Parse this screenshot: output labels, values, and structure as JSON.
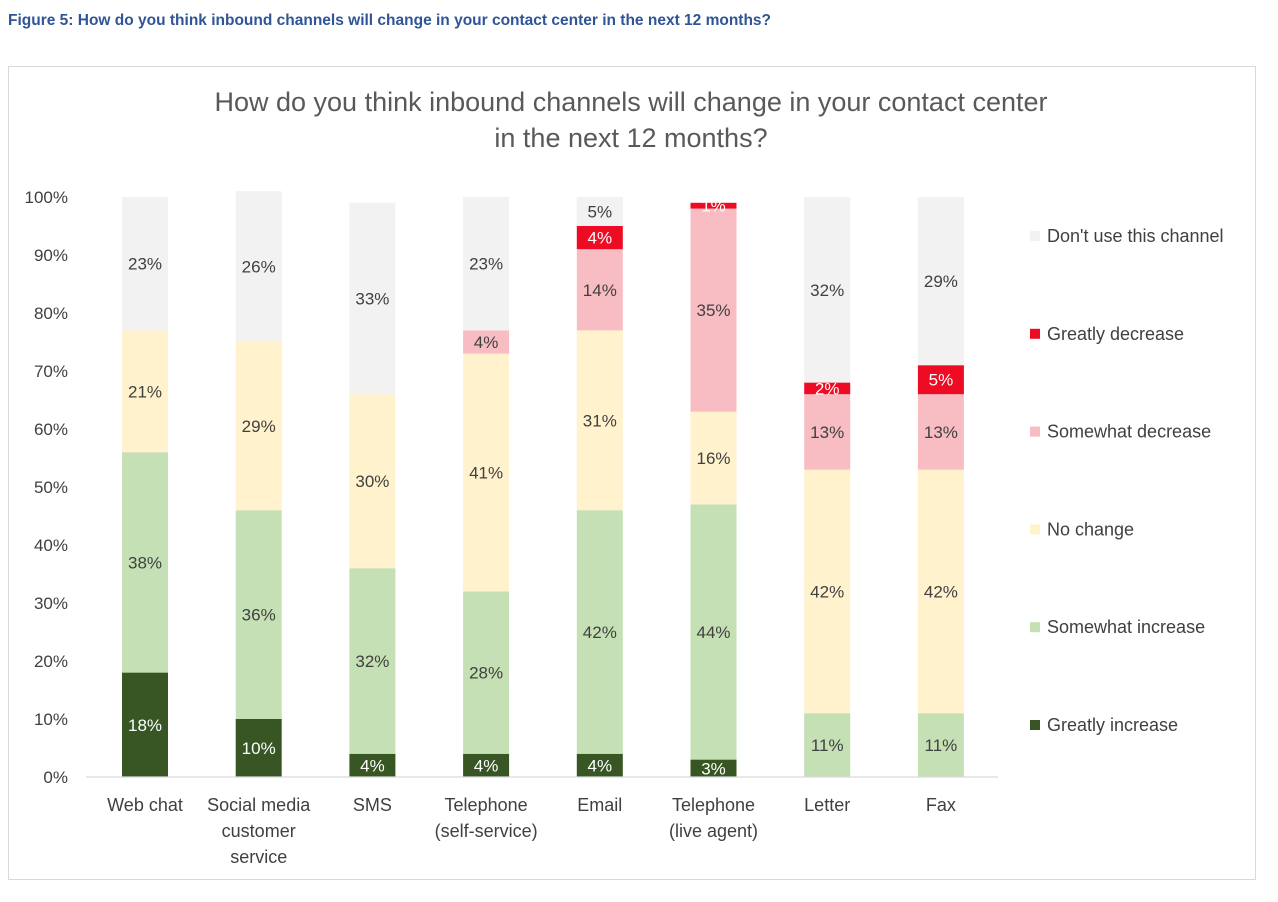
{
  "figure_caption": "Figure 5: How do you think inbound channels will change in your contact center in the next 12 months?",
  "chart_data": {
    "type": "bar",
    "stacked": true,
    "title": "How do you think inbound channels will change in your contact center in the next 12 months?",
    "title_lines": [
      "How do you think inbound channels will change in your contact center",
      "in the next 12 months?"
    ],
    "categories": [
      [
        "Web chat"
      ],
      [
        "Social media",
        "customer",
        "service"
      ],
      [
        "SMS"
      ],
      [
        "Telephone",
        "(self-service)"
      ],
      [
        "Email"
      ],
      [
        "Telephone",
        "(live agent)"
      ],
      [
        "Letter"
      ],
      [
        "Fax"
      ]
    ],
    "ylim": [
      0,
      100
    ],
    "yticks": [
      "0%",
      "10%",
      "20%",
      "30%",
      "40%",
      "50%",
      "60%",
      "70%",
      "80%",
      "90%",
      "100%"
    ],
    "grid": false,
    "legend_position": "right",
    "series": [
      {
        "name": "Greatly increase",
        "color": "#375623",
        "label_color": "#ffffff",
        "values": [
          18,
          10,
          4,
          4,
          4,
          3,
          0,
          0
        ],
        "labels": [
          "18%",
          "10%",
          "4%",
          "4%",
          "4%",
          "3%",
          "",
          ""
        ]
      },
      {
        "name": "Somewhat increase",
        "color": "#c5e0b4",
        "label_color": "#404040",
        "values": [
          38,
          36,
          32,
          28,
          42,
          44,
          11,
          11
        ],
        "labels": [
          "38%",
          "36%",
          "32%",
          "28%",
          "42%",
          "44%",
          "11%",
          "11%"
        ]
      },
      {
        "name": "No change",
        "color": "#fff2cc",
        "label_color": "#404040",
        "values": [
          21,
          29,
          30,
          41,
          31,
          16,
          42,
          42
        ],
        "labels": [
          "21%",
          "29%",
          "30%",
          "41%",
          "31%",
          "16%",
          "42%",
          "42%"
        ]
      },
      {
        "name": "Somewhat decrease",
        "color": "#f8bcc3",
        "label_color": "#404040",
        "values": [
          0,
          0,
          0,
          4,
          14,
          35,
          13,
          13
        ],
        "labels": [
          "",
          "",
          "",
          "4%",
          "14%",
          "35%",
          "13%",
          "13%"
        ]
      },
      {
        "name": "Greatly decrease",
        "color": "#ee0c24",
        "label_color": "#ffffff",
        "values": [
          0,
          0,
          0,
          0,
          4,
          1,
          2,
          5
        ],
        "labels": [
          "",
          "",
          "",
          "",
          "4%",
          "1%",
          "2%",
          "5%"
        ]
      },
      {
        "name": "Don't use this channel",
        "color": "#f2f2f2",
        "label_color": "#404040",
        "values": [
          23,
          26,
          33,
          23,
          5,
          0,
          32,
          29
        ],
        "labels": [
          "23%",
          "26%",
          "33%",
          "23%",
          "5%",
          "",
          "32%",
          "29%"
        ]
      }
    ],
    "legend_order": [
      "Don't use this channel",
      "Greatly decrease",
      "Somewhat decrease",
      "No change",
      "Somewhat increase",
      "Greatly increase"
    ]
  }
}
